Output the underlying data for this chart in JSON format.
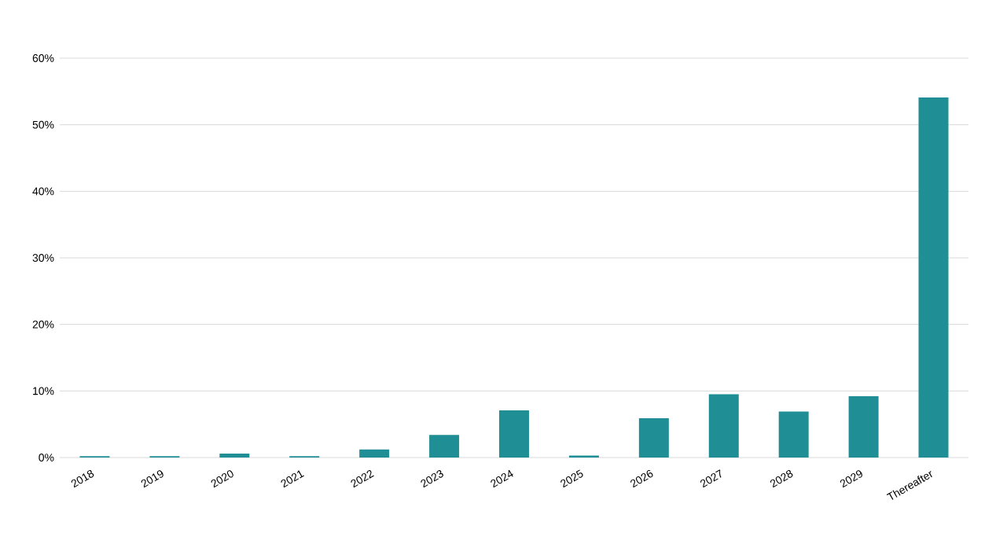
{
  "chart_data": {
    "type": "bar",
    "categories": [
      "2018",
      "2019",
      "2020",
      "2021",
      "2022",
      "2023",
      "2024",
      "2025",
      "2026",
      "2027",
      "2028",
      "2029",
      "Thereafter"
    ],
    "values": [
      0.2,
      0.2,
      0.6,
      0.2,
      1.2,
      3.4,
      7.1,
      0.3,
      5.9,
      9.5,
      6.9,
      9.2,
      54.1
    ],
    "color": "#1f8f95",
    "ylim": [
      0,
      60
    ],
    "yticks": [
      {
        "value": 0,
        "label": "0%"
      },
      {
        "value": 10,
        "label": "10%"
      },
      {
        "value": 20,
        "label": "20%"
      },
      {
        "value": 30,
        "label": "30%"
      },
      {
        "value": 40,
        "label": "40%"
      },
      {
        "value": 50,
        "label": "50%"
      },
      {
        "value": 60,
        "label": "60%"
      }
    ],
    "grid": "y"
  }
}
